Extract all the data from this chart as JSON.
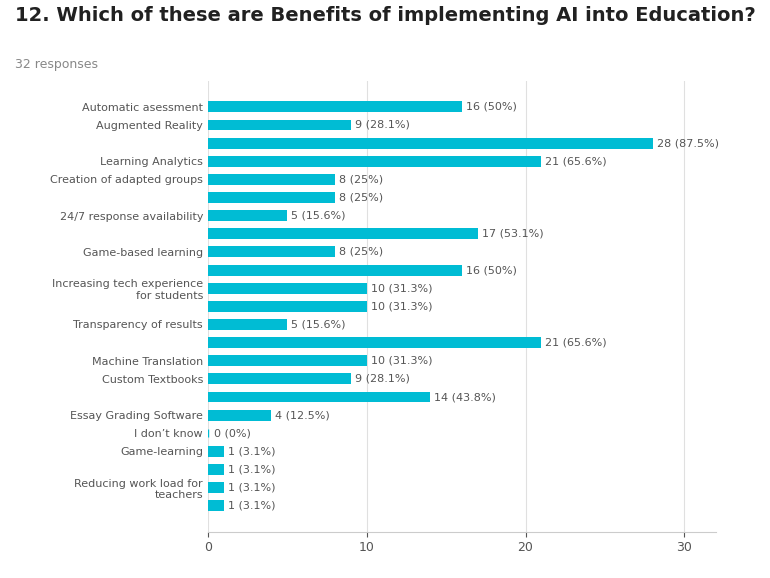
{
  "title": "12. Which of these are Benefits of implementing AI into Education?",
  "subtitle": "32 responses",
  "categories": [
    "Automatic asessment",
    "Augmented Reality",
    "",
    "Learning Analytics",
    "Creation of adapted groups",
    "",
    "24/7 response availability",
    "",
    "Game-based learning",
    "",
    "Increasing tech experience\nfor students",
    "",
    "Transparency of results",
    "",
    "Machine Translation",
    "Custom Textbooks",
    "",
    "Essay Grading Software",
    "I don’t know",
    "Game-learning",
    "",
    "Reducing work load for\nteachers",
    ""
  ],
  "values": [
    16,
    9,
    28,
    21,
    8,
    8,
    5,
    17,
    8,
    16,
    10,
    10,
    5,
    21,
    10,
    9,
    14,
    4,
    0,
    1,
    1,
    1,
    1
  ],
  "labels": [
    "16 (50%)",
    "9 (28.1%)",
    "28 (87.5%)",
    "21 (65.6%)",
    "8 (25%)",
    "8 (25%)",
    "5 (15.6%)",
    "17 (53.1%)",
    "8 (25%)",
    "16 (50%)",
    "10 (31.3%)",
    "10 (31.3%)",
    "5 (15.6%)",
    "21 (65.6%)",
    "10 (31.3%)",
    "9 (28.1%)",
    "14 (43.8%)",
    "4 (12.5%)",
    "0 (0%)",
    "1 (3.1%)",
    "1 (3.1%)",
    "1 (3.1%)",
    "1 (3.1%)"
  ],
  "bar_color": "#00bcd4",
  "text_color": "#555555",
  "title_color": "#212121",
  "subtitle_color": "#888888",
  "background_color": "#ffffff",
  "xlim_max": 32,
  "bar_height": 0.6,
  "title_fontsize": 14,
  "subtitle_fontsize": 9,
  "label_fontsize": 8,
  "tick_fontsize": 9
}
